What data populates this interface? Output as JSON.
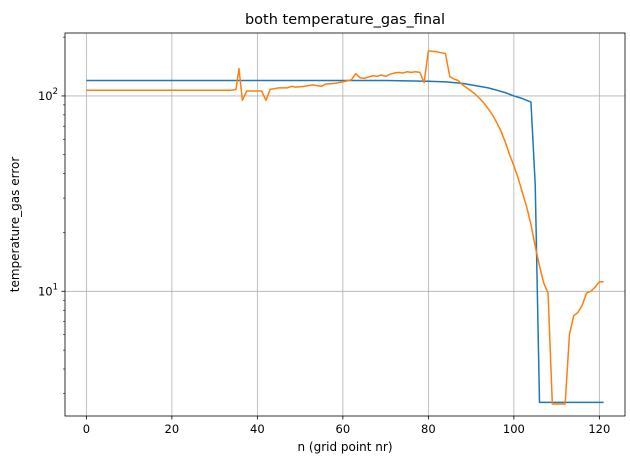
{
  "chart_data": {
    "type": "line",
    "title": "both temperature_gas_final",
    "xlabel": "n (grid point nr)",
    "ylabel": "temperature_gas error",
    "xlim": [
      -5,
      126
    ],
    "ylim": [
      2.3,
      210
    ],
    "yscale": "log",
    "grid": true,
    "legend": "none",
    "x_ticks": [
      0,
      20,
      40,
      60,
      80,
      100,
      120
    ],
    "y_major_ticks": [
      10,
      100
    ],
    "y_minor_ticks": [
      3,
      4,
      5,
      6,
      7,
      8,
      9,
      20,
      30,
      40,
      50,
      60,
      70,
      80,
      90,
      200
    ],
    "series": [
      {
        "color": "#1f77b4",
        "points": [
          [
            0,
            120
          ],
          [
            20,
            120
          ],
          [
            40,
            120
          ],
          [
            60,
            120
          ],
          [
            70,
            120
          ],
          [
            80,
            119
          ],
          [
            84,
            118
          ],
          [
            86,
            117
          ],
          [
            88,
            116
          ],
          [
            90,
            114
          ],
          [
            92,
            112
          ],
          [
            94,
            110
          ],
          [
            96,
            107
          ],
          [
            98,
            104
          ],
          [
            100,
            100
          ],
          [
            102,
            97
          ],
          [
            104,
            93
          ],
          [
            105,
            35
          ],
          [
            106,
            2.7
          ],
          [
            110,
            2.7
          ],
          [
            121,
            2.7
          ]
        ]
      },
      {
        "color": "#ff7f0e",
        "points": [
          [
            0,
            107
          ],
          [
            20,
            107
          ],
          [
            34,
            107
          ],
          [
            35,
            108
          ],
          [
            35.7,
            138
          ],
          [
            36.5,
            95
          ],
          [
            37.5,
            106
          ],
          [
            41,
            106
          ],
          [
            42,
            95
          ],
          [
            43,
            108
          ],
          [
            45,
            110
          ],
          [
            47,
            110
          ],
          [
            48,
            112
          ],
          [
            49,
            111
          ],
          [
            51,
            112
          ],
          [
            53,
            114
          ],
          [
            54,
            113
          ],
          [
            55,
            112
          ],
          [
            56,
            115
          ],
          [
            58,
            116
          ],
          [
            60,
            118
          ],
          [
            62,
            121
          ],
          [
            63,
            130
          ],
          [
            64,
            124
          ],
          [
            65,
            123
          ],
          [
            66,
            125
          ],
          [
            67,
            127
          ],
          [
            68,
            126
          ],
          [
            69,
            128
          ],
          [
            70,
            126
          ],
          [
            71,
            129
          ],
          [
            72,
            131
          ],
          [
            73,
            132
          ],
          [
            74,
            131
          ],
          [
            75,
            133
          ],
          [
            76,
            132
          ],
          [
            77,
            133
          ],
          [
            78,
            132
          ],
          [
            79,
            117
          ],
          [
            80,
            170
          ],
          [
            82,
            168
          ],
          [
            84,
            165
          ],
          [
            85,
            126
          ],
          [
            86,
            122
          ],
          [
            87,
            120
          ],
          [
            88,
            114
          ],
          [
            89,
            110
          ],
          [
            90,
            106
          ],
          [
            91,
            102
          ],
          [
            92,
            97
          ],
          [
            93,
            92
          ],
          [
            94,
            86
          ],
          [
            95,
            80
          ],
          [
            96,
            73
          ],
          [
            97,
            66
          ],
          [
            98,
            58
          ],
          [
            99,
            50
          ],
          [
            100,
            44
          ],
          [
            101,
            38
          ],
          [
            102,
            32
          ],
          [
            103,
            27
          ],
          [
            104,
            22
          ],
          [
            105,
            17
          ],
          [
            106,
            13.5
          ],
          [
            107,
            11
          ],
          [
            108,
            9.8
          ],
          [
            109,
            2.65
          ],
          [
            110,
            2.65
          ],
          [
            111,
            2.65
          ],
          [
            112,
            2.65
          ],
          [
            113,
            6
          ],
          [
            114,
            7.5
          ],
          [
            115,
            7.8
          ],
          [
            116,
            8.5
          ],
          [
            117,
            9.8
          ],
          [
            118,
            10
          ],
          [
            119,
            10.5
          ],
          [
            120,
            11.2
          ],
          [
            121,
            11.2
          ]
        ]
      }
    ]
  }
}
